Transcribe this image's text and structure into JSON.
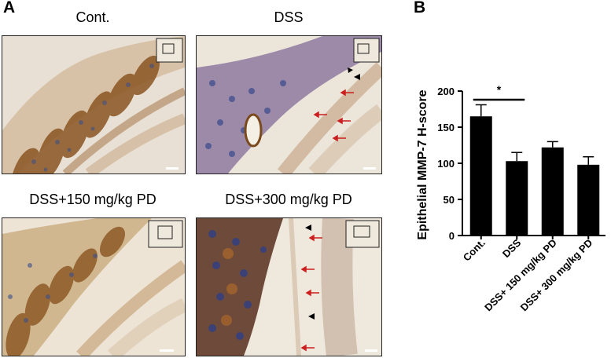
{
  "panels": {
    "a_label": "A",
    "b_label": "B"
  },
  "images": [
    {
      "title": "Cont."
    },
    {
      "title": "DSS"
    },
    {
      "title": "DSS+150 mg/kg PD"
    },
    {
      "title": "DSS+300 mg/kg PD"
    }
  ],
  "chart_data": {
    "type": "bar",
    "categories": [
      "Cont.",
      "DSS",
      "DSS+ 150 mg/kg PD",
      "DSS+ 300 mg/kg PD"
    ],
    "values": [
      165,
      103,
      122,
      98
    ],
    "errors": [
      16,
      12,
      8,
      11
    ],
    "ylabel": "Epithelial MMP-7 H-score",
    "ylim": [
      0,
      200
    ],
    "yticks": [
      0,
      50,
      100,
      150,
      200
    ],
    "significance": {
      "between": [
        "Cont.",
        "DSS"
      ],
      "label": "*"
    },
    "bar_color": "#000000"
  }
}
